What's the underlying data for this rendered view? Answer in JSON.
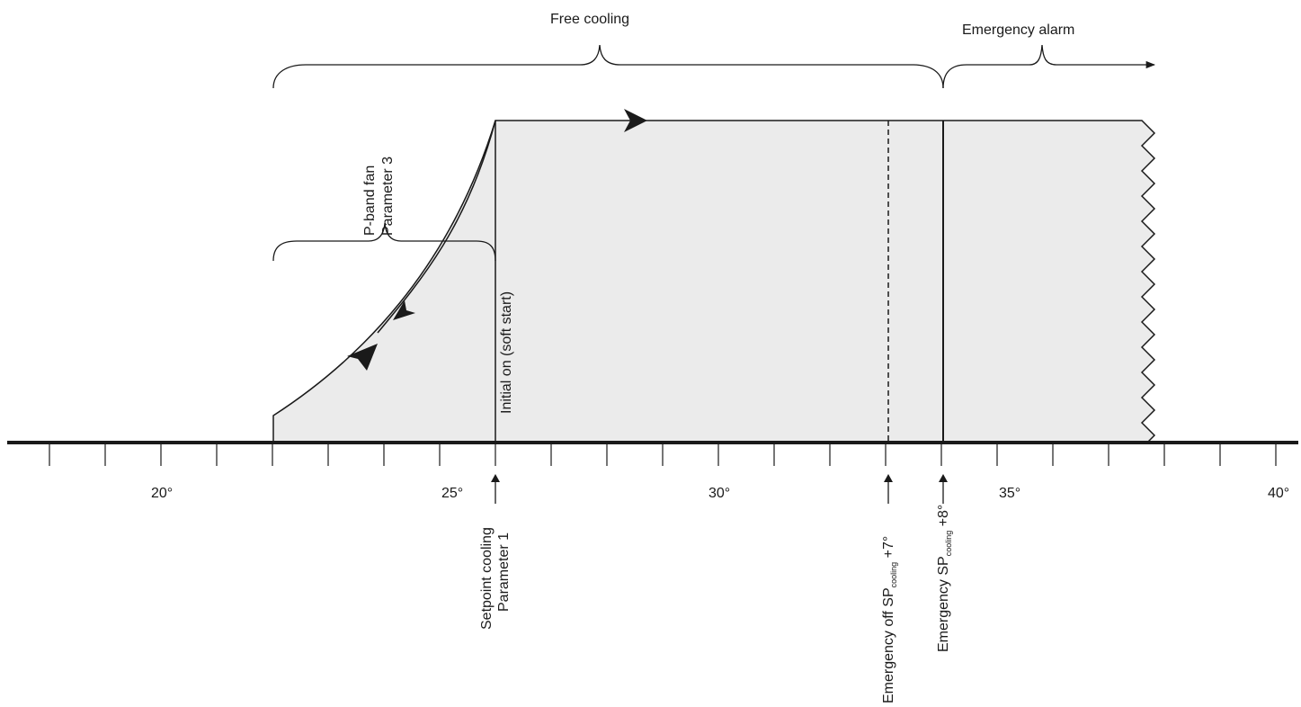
{
  "labels": {
    "free_cooling": "Free cooling",
    "emergency_alarm": "Emergency alarm",
    "pband_line1": "P-band fan",
    "pband_line2": "Parameter 3",
    "initial_on": "Initial on (soft start)",
    "setpoint_line1": "Setpoint cooling",
    "setpoint_line2": "Parameter 1",
    "emergency_off_prefix": "Emergency off SP",
    "emergency_off_sub": "cooling",
    "emergency_off_suffix": " +7°",
    "emergency_prefix": "Emergency SP",
    "emergency_sub": "cooling",
    "emergency_suffix": " +8°"
  },
  "axis": {
    "tick_labels": [
      "20°",
      "25°",
      "30°",
      "35°",
      "40°"
    ]
  }
}
